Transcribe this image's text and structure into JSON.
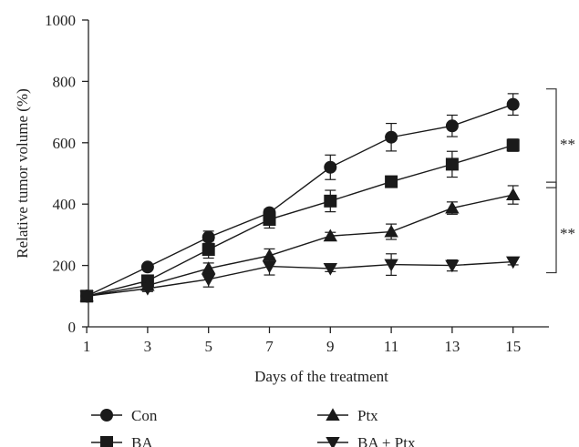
{
  "chart_data": {
    "type": "line",
    "title": "",
    "xlabel": "Days of the treatment",
    "ylabel": "Relative tumor volume (%)",
    "x": [
      1,
      3,
      5,
      7,
      9,
      11,
      13,
      15
    ],
    "xlim": [
      0,
      16
    ],
    "ylim": [
      0,
      1000
    ],
    "xticks": [
      1,
      3,
      5,
      7,
      9,
      11,
      13,
      15
    ],
    "yticks": [
      0,
      200,
      400,
      600,
      800,
      1000
    ],
    "grid": false,
    "legend_position": "bottom",
    "series": [
      {
        "name": "Con",
        "marker": "circle",
        "values": [
          100,
          195,
          292,
          372,
          520,
          618,
          655,
          725
        ],
        "errors": [
          0,
          8,
          20,
          12,
          40,
          45,
          35,
          35
        ]
      },
      {
        "name": "BA",
        "marker": "square",
        "values": [
          100,
          150,
          252,
          350,
          410,
          473,
          530,
          592
        ],
        "errors": [
          0,
          10,
          28,
          28,
          35,
          18,
          42,
          20
        ]
      },
      {
        "name": "Ptx",
        "marker": "triangle-up",
        "values": [
          100,
          135,
          190,
          232,
          296,
          310,
          387,
          430
        ],
        "errors": [
          0,
          10,
          18,
          22,
          12,
          25,
          20,
          30
        ]
      },
      {
        "name": "BA + Ptx",
        "marker": "triangle-down",
        "values": [
          100,
          125,
          155,
          197,
          190,
          203,
          200,
          212
        ],
        "errors": [
          0,
          10,
          25,
          28,
          10,
          35,
          18,
          10
        ]
      }
    ],
    "annotations": [
      {
        "text": "**",
        "between": [
          "Con",
          "Ptx"
        ],
        "at_x": 15
      },
      {
        "text": "**",
        "between": [
          "Ptx",
          "BA + Ptx"
        ],
        "at_x": 15
      }
    ]
  }
}
